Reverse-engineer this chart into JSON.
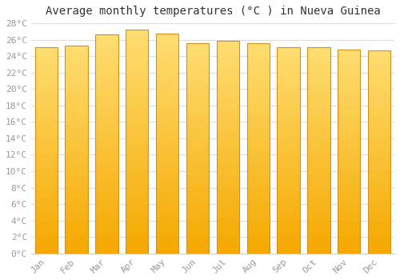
{
  "title": "Average monthly temperatures (°C ) in Nueva Guinea",
  "months": [
    "Jan",
    "Feb",
    "Mar",
    "Apr",
    "May",
    "Jun",
    "Jul",
    "Aug",
    "Sep",
    "Oct",
    "Nov",
    "Dec"
  ],
  "values": [
    25.1,
    25.3,
    26.6,
    27.2,
    26.7,
    25.6,
    25.9,
    25.6,
    25.1,
    25.1,
    24.8,
    24.7
  ],
  "ylim": [
    0,
    28
  ],
  "ytick_step": 2,
  "background_color": "#FFFFFF",
  "grid_color": "#DDDDDD",
  "title_fontsize": 10,
  "tick_fontsize": 8,
  "bar_width": 0.75,
  "bar_color_bottom": "#F5A800",
  "bar_color_top": "#FFD966",
  "bar_edge_color": "#D4901A"
}
